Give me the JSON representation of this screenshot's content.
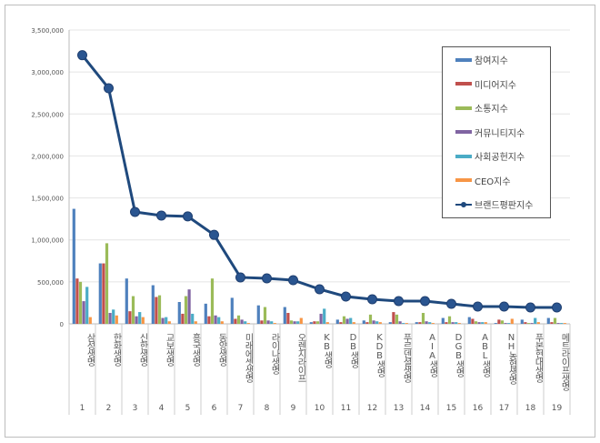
{
  "chart_data": {
    "type": "bar",
    "ylim": [
      0,
      3500000
    ],
    "yticks": [
      "0",
      "500,000",
      "1,000,000",
      "1,500,000",
      "2,000,000",
      "2,500,000",
      "3,000,000",
      "3,500,000"
    ],
    "grid": true,
    "legend_position": "top-right",
    "categories": [
      "삼성생명",
      "한화생명",
      "신한생명",
      "교보생명",
      "흥국생명",
      "동양생명",
      "미래에셋생명",
      "라이나생명",
      "오렌지라이프",
      "KB생명",
      "DB생명",
      "KDB생명",
      "푸르덴셜생명",
      "AIA생명",
      "DGB생명",
      "ABL생명",
      "NH농협생명",
      "푸본현대생명",
      "메트라이프생명"
    ],
    "ranks": [
      "1",
      "2",
      "3",
      "4",
      "5",
      "6",
      "7",
      "8",
      "9",
      "10",
      "11",
      "12",
      "13",
      "14",
      "15",
      "16",
      "17",
      "18",
      "19"
    ],
    "series": [
      {
        "name": "참여지수",
        "type": "bar",
        "color": "#4f81bd",
        "values": [
          1370000,
          720000,
          540000,
          460000,
          260000,
          240000,
          310000,
          220000,
          200000,
          20000,
          50000,
          40000,
          20000,
          20000,
          70000,
          80000,
          10000,
          50000,
          70000
        ]
      },
      {
        "name": "미디어지수",
        "type": "bar",
        "color": "#c0504d",
        "values": [
          540000,
          720000,
          150000,
          320000,
          120000,
          90000,
          60000,
          40000,
          130000,
          30000,
          20000,
          20000,
          140000,
          20000,
          20000,
          60000,
          50000,
          20000,
          20000
        ]
      },
      {
        "name": "소통지수",
        "type": "bar",
        "color": "#9bbb59",
        "values": [
          500000,
          960000,
          330000,
          340000,
          330000,
          540000,
          100000,
          200000,
          40000,
          30000,
          90000,
          110000,
          110000,
          130000,
          90000,
          30000,
          40000,
          10000,
          70000
        ]
      },
      {
        "name": "커뮤니티지수",
        "type": "bar",
        "color": "#8064a2",
        "values": [
          270000,
          130000,
          90000,
          70000,
          410000,
          100000,
          50000,
          40000,
          30000,
          120000,
          60000,
          40000,
          30000,
          30000,
          20000,
          20000,
          10000,
          10000,
          10000
        ]
      },
      {
        "name": "사회공헌지수",
        "type": "bar",
        "color": "#4bacc6",
        "values": [
          440000,
          170000,
          140000,
          80000,
          120000,
          80000,
          30000,
          30000,
          30000,
          180000,
          70000,
          30000,
          10000,
          20000,
          20000,
          20000,
          10000,
          70000,
          10000
        ]
      },
      {
        "name": "CEO지수",
        "type": "bar",
        "color": "#f79646",
        "values": [
          80000,
          100000,
          80000,
          30000,
          30000,
          30000,
          10000,
          10000,
          70000,
          20000,
          20000,
          20000,
          10000,
          10000,
          10000,
          20000,
          60000,
          20000,
          10000
        ]
      },
      {
        "name": "브랜드평판지수",
        "type": "line",
        "color": "#1f497d",
        "values": [
          3200000,
          2806000,
          1333000,
          1290000,
          1280000,
          1060000,
          553000,
          542000,
          520000,
          412000,
          325000,
          293000,
          271000,
          271000,
          238000,
          206000,
          206000,
          195000,
          195000
        ]
      }
    ]
  }
}
